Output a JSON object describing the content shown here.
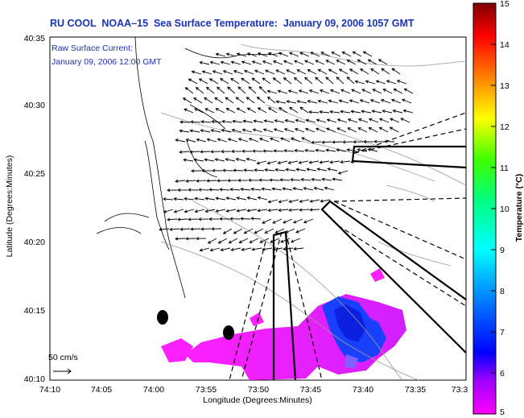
{
  "title": "RU COOL  NOAA–15  Sea Surface Temperature:  January 09, 2006 1057 GMT",
  "current_label": "Raw Surface Current:",
  "current_time": "January 09, 2006 12:00 GMT",
  "scale_label": "50 cm/s",
  "axes": {
    "y_label": "Latitude (Degrees:Minutes)",
    "x_label": "Longitude (Degrees:Minutes)",
    "y_ticks": [
      "40:35",
      "40:30",
      "40:25",
      "40:20",
      "40:15",
      "40:10"
    ],
    "x_ticks": [
      "74:10",
      "74:05",
      "74:00",
      "73:55",
      "73:50",
      "73:45",
      "73:40",
      "73:35",
      "73:3"
    ]
  },
  "colorbar": {
    "label": "Temperature (°C)",
    "ticks": [
      "15",
      "14",
      "13",
      "12",
      "11",
      "10",
      "9",
      "8",
      "7",
      "6",
      "5"
    ],
    "colors": [
      "#ff00ff",
      "#8000ff",
      "#0000ff",
      "#0080ff",
      "#00ffff",
      "#00ff80",
      "#00ff00",
      "#80ff00",
      "#ffff00",
      "#ff8000",
      "#ff0000",
      "#800000"
    ]
  }
}
